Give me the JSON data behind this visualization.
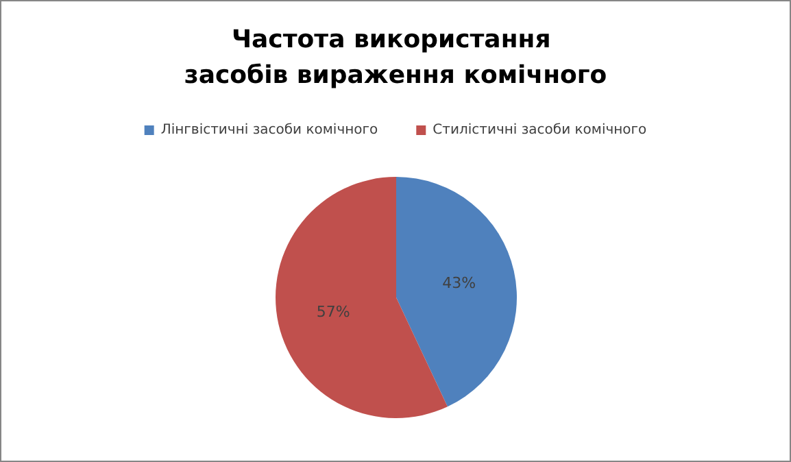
{
  "chart_data": {
    "type": "pie",
    "title": "Частота використання засобів вираження комічного",
    "categories": [
      "Лінгвістичні засоби комічного",
      "Стилістичні засоби комічного"
    ],
    "values": [
      43,
      57
    ],
    "colors": [
      "#4f81bd",
      "#c0504d"
    ],
    "value_labels": [
      "43%",
      "57%"
    ],
    "legend": "top"
  }
}
